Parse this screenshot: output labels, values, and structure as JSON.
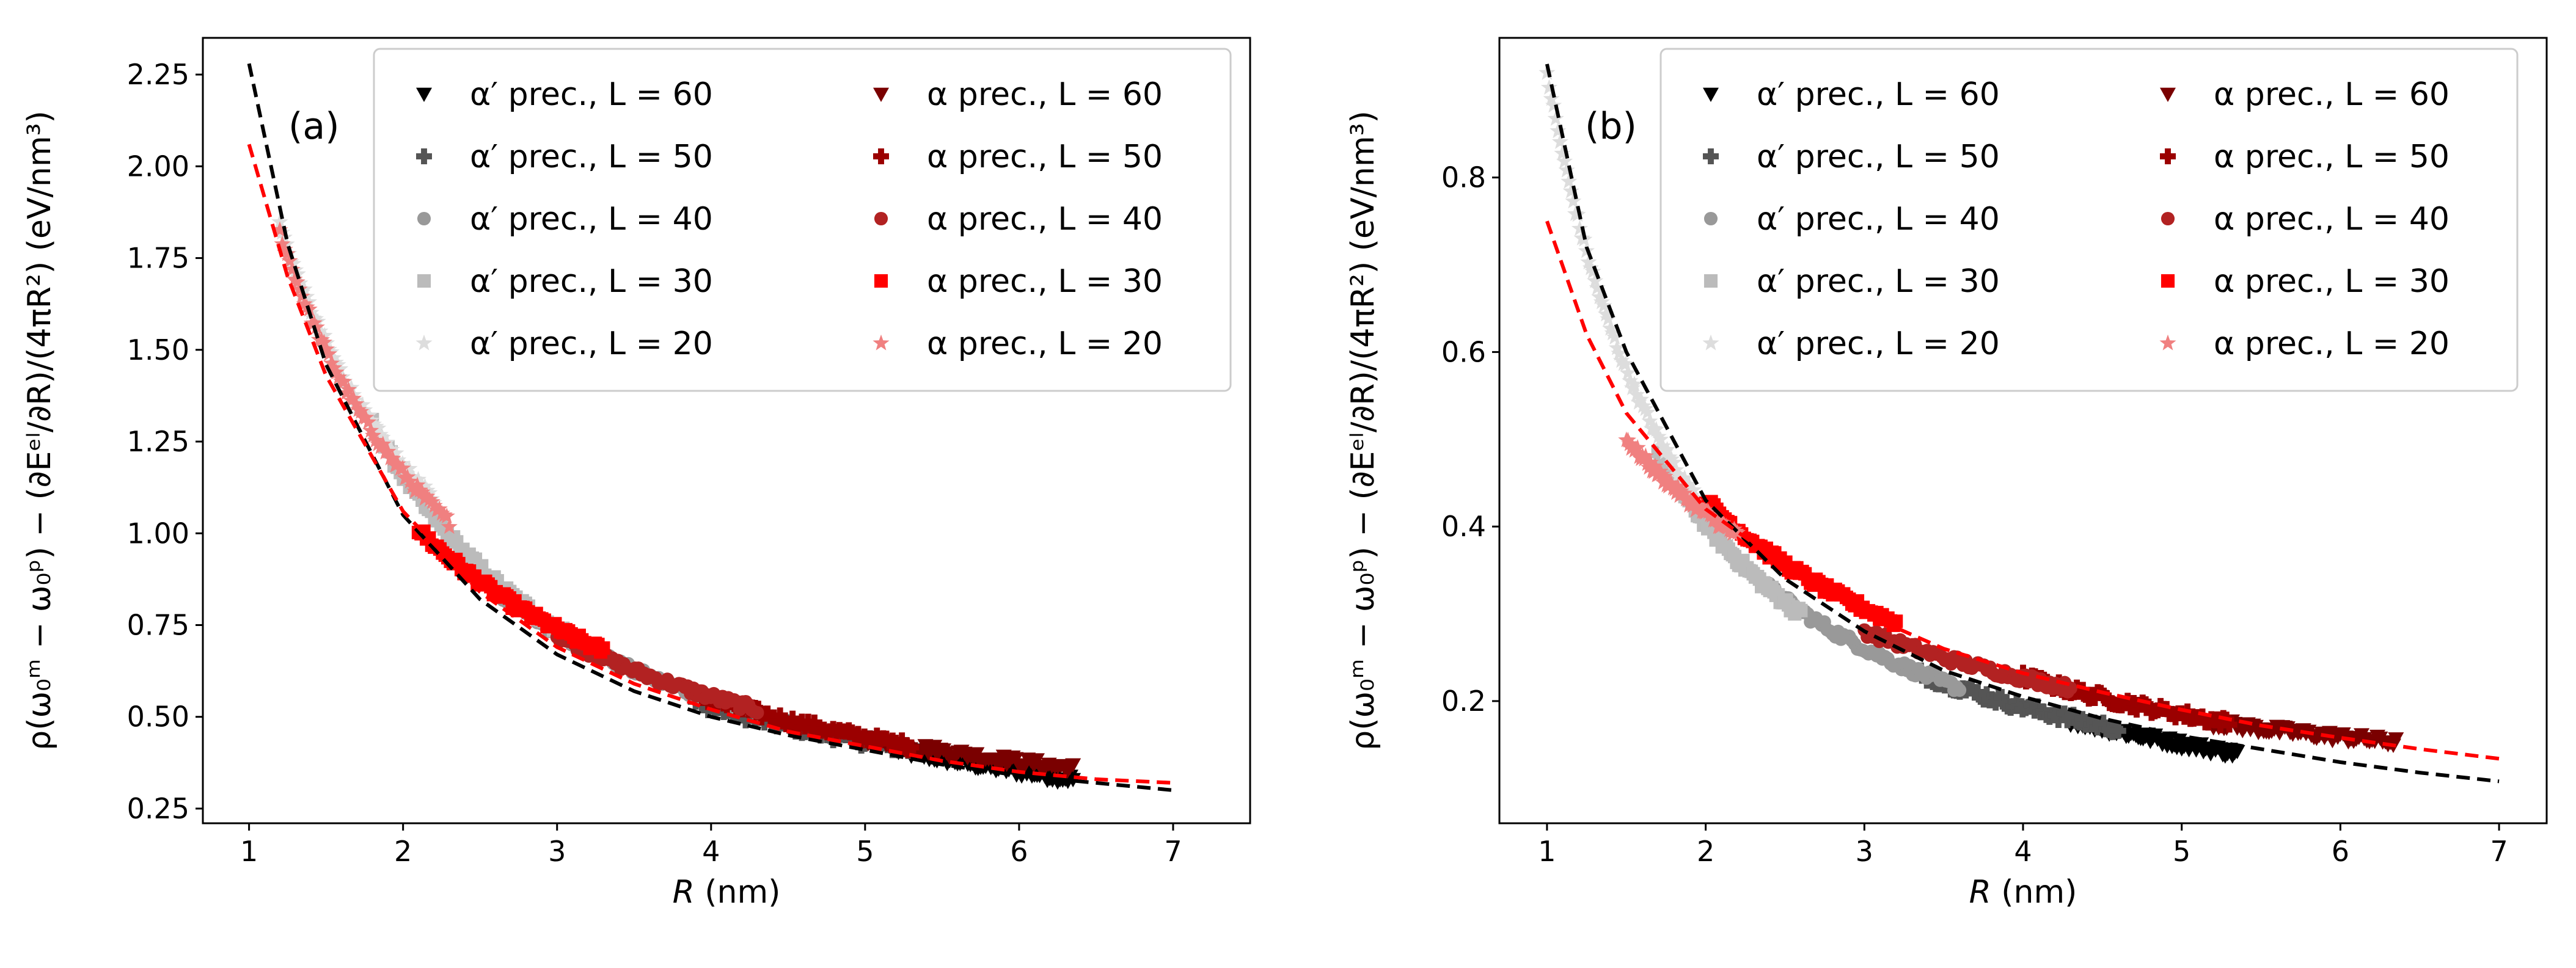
{
  "chart_data": [
    {
      "type": "scatter",
      "panel_label": "(a)",
      "xlabel_var": "R",
      "xlabel_unit": " (nm)",
      "ylabel": "ρ(ω₀ᵐ − ω₀ᵖ) − (∂Eᵉˡ/∂R)/(4πR²) (eV/nm³)",
      "xlim": [
        0.7,
        7.5
      ],
      "ylim": [
        0.21,
        2.35
      ],
      "xticks": [
        1,
        2,
        3,
        4,
        5,
        6,
        7
      ],
      "yticks": [
        0.25,
        0.5,
        0.75,
        1.0,
        1.25,
        1.5,
        1.75,
        2.0,
        2.25
      ],
      "ytick_labels": [
        "0.25",
        "0.50",
        "0.75",
        "1.00",
        "1.25",
        "1.50",
        "1.75",
        "2.00",
        "2.25"
      ],
      "grid": false,
      "legend_position": "top-right",
      "legend_columns": 2,
      "series": [
        {
          "name": "α′ prec., L = 60",
          "marker": "triangle-down",
          "color": "#000000",
          "x_range": [
            5.2,
            6.35
          ],
          "y_range": [
            0.41,
            0.33
          ]
        },
        {
          "name": "α′ prec., L = 50",
          "marker": "plus",
          "color": "#555555",
          "x_range": [
            3.9,
            5.3
          ],
          "y_range": [
            0.54,
            0.41
          ]
        },
        {
          "name": "α′ prec., L = 40",
          "marker": "circle",
          "color": "#999999",
          "x_range": [
            2.6,
            4.3
          ],
          "y_range": [
            0.84,
            0.51
          ]
        },
        {
          "name": "α′ prec., L = 30",
          "marker": "square",
          "color": "#bbbbbb",
          "x_range": [
            1.8,
            3.2
          ],
          "y_range": [
            1.3,
            0.69
          ]
        },
        {
          "name": "α′ prec., L = 20",
          "marker": "star",
          "color": "#dddddd",
          "x_range": [
            1.2,
            2.2
          ],
          "y_range": [
            1.84,
            1.09
          ]
        },
        {
          "name": "α prec., L = 60",
          "marker": "triangle-down",
          "color": "#7a0000",
          "x_range": [
            5.0,
            6.35
          ],
          "y_range": [
            0.44,
            0.36
          ]
        },
        {
          "name": "α prec., L = 50",
          "marker": "plus",
          "color": "#9b0000",
          "x_range": [
            3.9,
            5.3
          ],
          "y_range": [
            0.56,
            0.42
          ]
        },
        {
          "name": "α prec., L = 40",
          "marker": "circle",
          "color": "#b22222",
          "x_range": [
            3.0,
            4.3
          ],
          "y_range": [
            0.72,
            0.52
          ]
        },
        {
          "name": "α prec., L = 30",
          "marker": "square",
          "color": "#ff0000",
          "x_range": [
            2.1,
            3.3
          ],
          "y_range": [
            1.01,
            0.68
          ]
        },
        {
          "name": "α prec., L = 20",
          "marker": "star",
          "color": "#f08080",
          "x_range": [
            1.2,
            2.3
          ],
          "y_range": [
            1.82,
            1.03
          ]
        }
      ],
      "fits": [
        {
          "color": "#000000",
          "style": "dashed",
          "x": [
            1.0,
            1.25,
            1.5,
            2.0,
            2.5,
            3.0,
            3.5,
            4.0,
            4.5,
            5.0,
            5.5,
            6.0,
            6.5,
            7.0
          ],
          "y": [
            2.28,
            1.79,
            1.46,
            1.05,
            0.82,
            0.67,
            0.57,
            0.5,
            0.45,
            0.41,
            0.37,
            0.34,
            0.32,
            0.3
          ]
        },
        {
          "color": "#ff0000",
          "style": "dashed",
          "x": [
            1.0,
            1.25,
            1.5,
            2.0,
            2.5,
            3.0,
            3.5,
            4.0,
            4.5,
            5.0,
            5.5,
            6.0,
            6.5,
            7.0
          ],
          "y": [
            2.06,
            1.7,
            1.43,
            1.06,
            0.84,
            0.69,
            0.59,
            0.52,
            0.46,
            0.42,
            0.38,
            0.35,
            0.33,
            0.32
          ]
        }
      ]
    },
    {
      "type": "scatter",
      "panel_label": "(b)",
      "xlabel_var": "R",
      "xlabel_unit": " (nm)",
      "ylabel": "ρ(ω₀ᵐ − ω₀ᵖ) − (∂Eᵉˡ/∂R)/(4πR²) (eV/nm³)",
      "xlim": [
        0.7,
        7.3
      ],
      "ylim": [
        0.06,
        0.96
      ],
      "xticks": [
        1,
        2,
        3,
        4,
        5,
        6,
        7
      ],
      "yticks": [
        0.2,
        0.4,
        0.6,
        0.8
      ],
      "ytick_labels": [
        "0.2",
        "0.4",
        "0.6",
        "0.8"
      ],
      "grid": false,
      "legend_position": "top-right",
      "legend_columns": 2,
      "series": [
        {
          "name": "α′ prec., L = 60",
          "marker": "triangle-down",
          "color": "#000000",
          "x_range": [
            4.3,
            5.35
          ],
          "y_range": [
            0.178,
            0.14
          ]
        },
        {
          "name": "α′ prec., L = 50",
          "marker": "plus",
          "color": "#555555",
          "x_range": [
            3.3,
            4.6
          ],
          "y_range": [
            0.235,
            0.168
          ]
        },
        {
          "name": "α′ prec., L = 40",
          "marker": "circle",
          "color": "#999999",
          "x_range": [
            2.4,
            3.6
          ],
          "y_range": [
            0.33,
            0.215
          ]
        },
        {
          "name": "α′ prec., L = 30",
          "marker": "square",
          "color": "#bbbbbb",
          "x_range": [
            1.7,
            2.6
          ],
          "y_range": [
            0.485,
            0.3
          ]
        },
        {
          "name": "α′ prec., L = 20",
          "marker": "star",
          "color": "#dddddd",
          "x_range": [
            1.0,
            1.95
          ],
          "y_range": [
            0.92,
            0.43
          ]
        },
        {
          "name": "α prec., L = 60",
          "marker": "triangle-down",
          "color": "#7a0000",
          "x_range": [
            5.2,
            6.35
          ],
          "y_range": [
            0.175,
            0.153
          ]
        },
        {
          "name": "α prec., L = 50",
          "marker": "plus",
          "color": "#9b0000",
          "x_range": [
            4.0,
            5.3
          ],
          "y_range": [
            0.228,
            0.175
          ]
        },
        {
          "name": "α prec., L = 40",
          "marker": "circle",
          "color": "#b22222",
          "x_range": [
            3.0,
            4.3
          ],
          "y_range": [
            0.28,
            0.215
          ]
        },
        {
          "name": "α prec., L = 30",
          "marker": "square",
          "color": "#ff0000",
          "x_range": [
            2.0,
            3.2
          ],
          "y_range": [
            0.43,
            0.29
          ]
        },
        {
          "name": "α prec., L = 20",
          "marker": "star",
          "color": "#f08080",
          "x_range": [
            1.5,
            2.2
          ],
          "y_range": [
            0.5,
            0.39
          ]
        }
      ],
      "fits": [
        {
          "color": "#000000",
          "style": "dashed",
          "x": [
            1.0,
            1.25,
            1.5,
            2.0,
            2.5,
            3.0,
            3.5,
            4.0,
            4.5,
            5.0,
            5.5,
            6.0,
            6.5,
            7.0
          ],
          "y": [
            0.93,
            0.72,
            0.6,
            0.43,
            0.34,
            0.28,
            0.235,
            0.205,
            0.18,
            0.16,
            0.145,
            0.13,
            0.118,
            0.108
          ]
        },
        {
          "color": "#ff0000",
          "style": "dashed",
          "x": [
            1.0,
            1.25,
            1.5,
            2.0,
            2.5,
            3.0,
            3.5,
            4.0,
            4.5,
            5.0,
            5.5,
            6.0,
            6.5,
            7.0
          ],
          "y": [
            0.75,
            0.62,
            0.53,
            0.42,
            0.355,
            0.3,
            0.26,
            0.232,
            0.21,
            0.19,
            0.172,
            0.158,
            0.145,
            0.134
          ]
        }
      ]
    }
  ]
}
